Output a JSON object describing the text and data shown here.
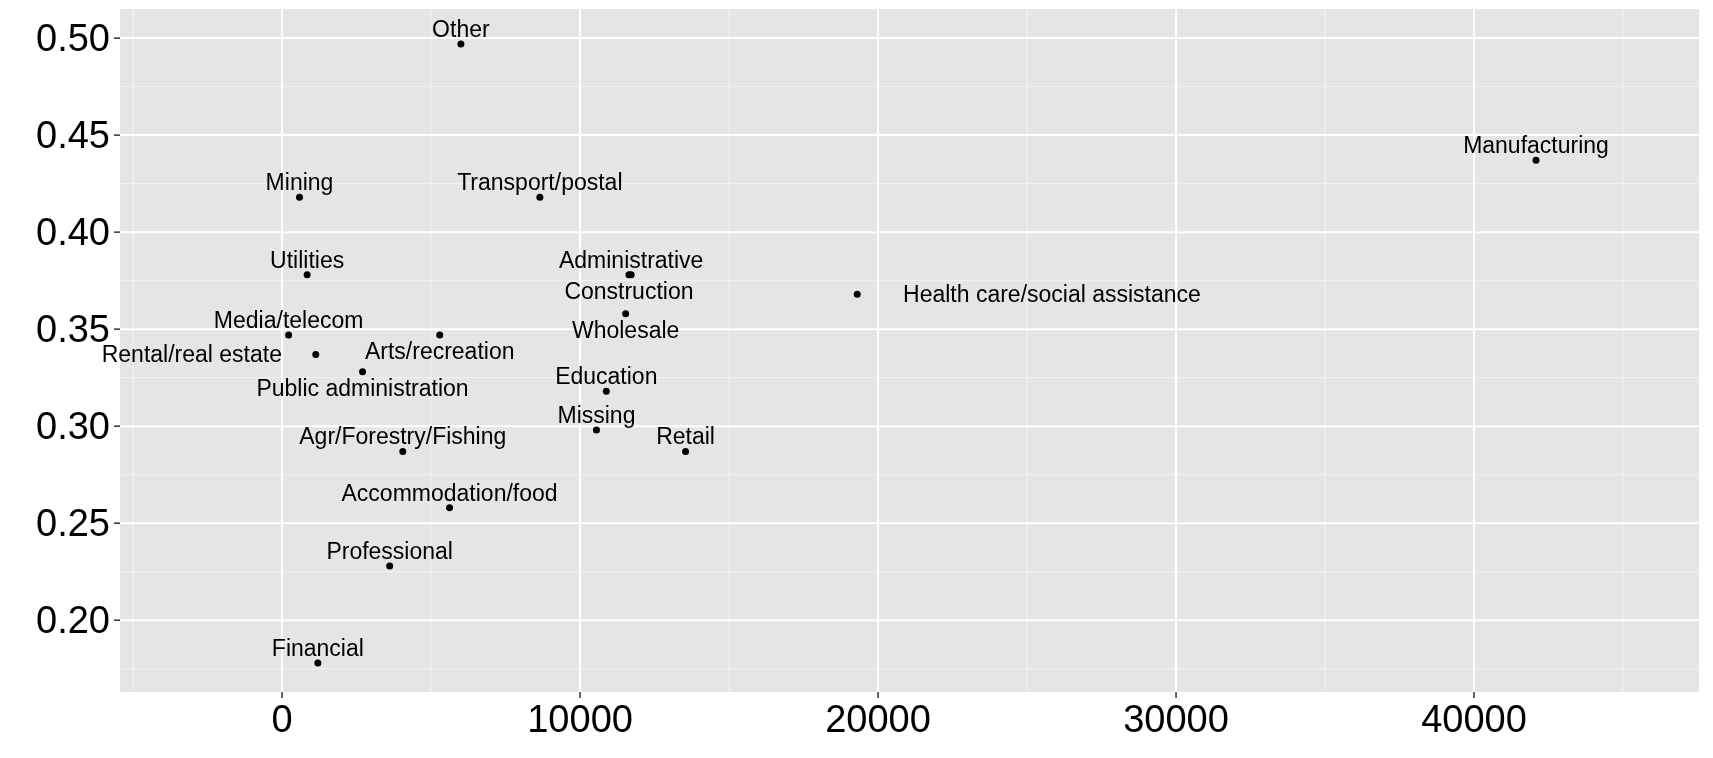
{
  "chart_data": {
    "type": "scatter",
    "marker": "circle",
    "grid": true,
    "x": [
      6000,
      42080,
      584,
      8650,
      840,
      11715,
      11640,
      19300,
      11530,
      220,
      5290,
      1130,
      2700,
      10880,
      10550,
      13540,
      4050,
      5620,
      3610,
      1200
    ],
    "values": [
      0.497,
      0.437,
      0.418,
      0.418,
      0.378,
      0.378,
      0.378,
      0.368,
      0.358,
      0.347,
      0.347,
      0.337,
      0.328,
      0.318,
      0.298,
      0.287,
      0.287,
      0.258,
      0.228,
      0.178
    ],
    "value_labels": [
      "Other",
      "Manufacturing",
      "Mining",
      "Transport/postal",
      "Utilities",
      "Administrative",
      "Construction",
      "Health care/social assistance",
      "Wholesale",
      "Media/telecom",
      "Arts/recreation",
      "Rental/real estate",
      "Public administration",
      "Education",
      "Missing",
      "Retail",
      "Agr/Forestry/Fishing",
      "Accommodation/food",
      "Professional",
      "Financial"
    ],
    "color": "#000000",
    "xlim": [
      -5440,
      47550
    ],
    "ylim": [
      0.163,
      0.515
    ],
    "xticks": [
      0,
      10000,
      20000,
      30000,
      40000
    ],
    "yticks": [
      {
        "value": 0.2,
        "label": "0.20"
      },
      {
        "value": 0.25,
        "label": "0.25"
      },
      {
        "value": 0.3,
        "label": "0.30"
      },
      {
        "value": 0.35,
        "label": "0.35"
      },
      {
        "value": 0.4,
        "label": "0.40"
      },
      {
        "value": 0.45,
        "label": "0.45"
      },
      {
        "value": 0.5,
        "label": "0.50"
      }
    ]
  }
}
